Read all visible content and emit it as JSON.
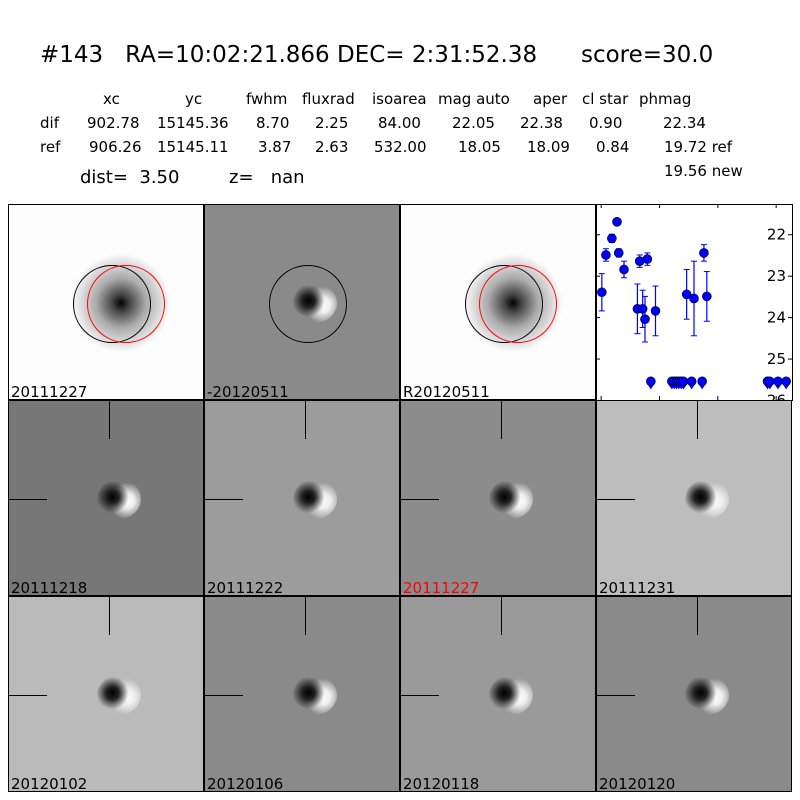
{
  "header": {
    "title": "#143   RA=10:02:21.866 DEC= 2:31:52.38      score=30.0",
    "columns": [
      "xc",
      "yc",
      "fwhm",
      "fluxrad",
      "isoarea",
      "mag auto",
      "aper",
      "cl star",
      "phmag"
    ],
    "rows": [
      {
        "label": "dif",
        "values": [
          "902.78",
          "15145.36",
          "8.70",
          "2.25",
          "84.00",
          "22.05",
          "22.38",
          "0.90",
          "22.34"
        ]
      },
      {
        "label": "ref",
        "values": [
          "906.26",
          "15145.11",
          "3.87",
          "2.63",
          "532.00",
          "18.05",
          "18.09",
          "0.84",
          "19.72 ref"
        ]
      }
    ],
    "extra_phmag": "19.56 new",
    "dist": "dist=  3.50",
    "z": "z=   nan"
  },
  "stamps": [
    {
      "label": "20111227",
      "kind": "ref",
      "bg": "#fdfdfd",
      "circles": [
        "black",
        "red"
      ]
    },
    {
      "label": "-20120511",
      "kind": "diff",
      "bg": "#8a8a8a",
      "circles": [
        "black"
      ]
    },
    {
      "label": "R20120511",
      "kind": "ref",
      "bg": "#fdfdfd",
      "circles": [
        "black",
        "red"
      ]
    },
    {
      "label": "20111218",
      "kind": "diff",
      "bg": "#777777",
      "crosshair": true
    },
    {
      "label": "20111222",
      "kind": "diff",
      "bg": "#9c9c9c",
      "crosshair": true
    },
    {
      "label": "20111227",
      "kind": "diff",
      "bg": "#8c8c8c",
      "crosshair": true,
      "label_color": "#ff0000"
    },
    {
      "label": "20111231",
      "kind": "diff",
      "bg": "#bdbdbd",
      "crosshair": true
    },
    {
      "label": "20120102",
      "kind": "diff",
      "bg": "#bababa",
      "crosshair": true
    },
    {
      "label": "20120106",
      "kind": "diff",
      "bg": "#8a8a8a",
      "crosshair": true
    },
    {
      "label": "20120118",
      "kind": "diff",
      "bg": "#9a9a9a",
      "crosshair": true
    },
    {
      "label": "20120120",
      "kind": "diff",
      "bg": "#8a8a8a",
      "crosshair": true
    }
  ],
  "chart_data": {
    "type": "scatter",
    "marker_color": "#0000ff",
    "y_inverted": true,
    "xlim": [
      -4,
      164
    ],
    "ylim": [
      26,
      21.27
    ],
    "xticks": [
      0,
      50,
      100,
      150
    ],
    "yticks": [
      22,
      23,
      24,
      25,
      26
    ],
    "points": [
      {
        "x": 1,
        "y": 23.4,
        "err": 0.45
      },
      {
        "x": 4.5,
        "y": 22.5,
        "err": 0.15
      },
      {
        "x": 9.6,
        "y": 22.1,
        "err": 0.1
      },
      {
        "x": 14,
        "y": 21.7,
        "err": 0.05
      },
      {
        "x": 15.5,
        "y": 22.45,
        "err": 0.1
      },
      {
        "x": 20,
        "y": 22.85,
        "err": 0.2
      },
      {
        "x": 31.5,
        "y": 23.8,
        "err": 0.6
      },
      {
        "x": 33.5,
        "y": 22.65,
        "err": 0.15
      },
      {
        "x": 36,
        "y": 23.8,
        "err": 0.45
      },
      {
        "x": 38,
        "y": 24.05,
        "err": 0.55
      },
      {
        "x": 40,
        "y": 22.6,
        "err": 0.15
      },
      {
        "x": 47,
        "y": 23.85,
        "err": 0.6
      },
      {
        "x": 73.7,
        "y": 23.45,
        "err": 0.6
      },
      {
        "x": 80,
        "y": 23.55,
        "err": 0.9
      },
      {
        "x": 88.5,
        "y": 22.45,
        "err": 0.2
      },
      {
        "x": 91,
        "y": 23.5,
        "err": 0.6
      }
    ],
    "upper_limits": [
      {
        "x": 43,
        "y": 25.55
      },
      {
        "x": 61,
        "y": 25.55
      },
      {
        "x": 63,
        "y": 25.55
      },
      {
        "x": 65,
        "y": 25.55
      },
      {
        "x": 67,
        "y": 25.55
      },
      {
        "x": 69,
        "y": 25.55
      },
      {
        "x": 71,
        "y": 25.55
      },
      {
        "x": 78,
        "y": 25.55
      },
      {
        "x": 87,
        "y": 25.55
      },
      {
        "x": 143,
        "y": 25.55
      },
      {
        "x": 145,
        "y": 25.55
      },
      {
        "x": 152,
        "y": 25.55
      },
      {
        "x": 159,
        "y": 25.55
      }
    ]
  }
}
